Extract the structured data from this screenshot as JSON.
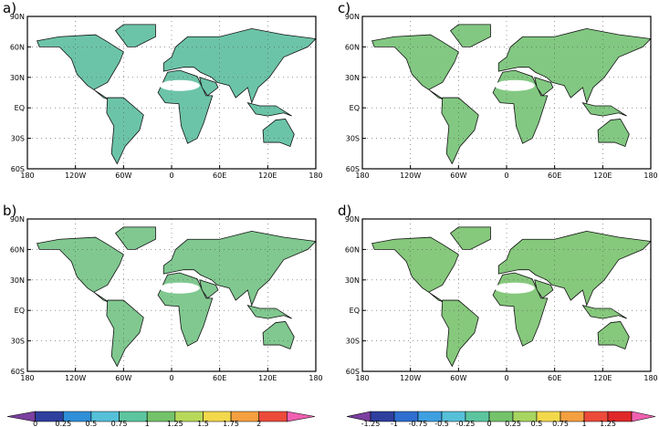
{
  "panels": [
    {
      "label": "a)"
    },
    {
      "label": "c)"
    },
    {
      "label": "b)"
    },
    {
      "label": "d)"
    }
  ],
  "lat_labels": [
    "90N",
    "60N",
    "30N",
    "EQ",
    "30S",
    "60S"
  ],
  "lon_labels": [
    "180",
    "120W",
    "60W",
    "0",
    "60E",
    "120E",
    "180"
  ],
  "colorbars": [
    {
      "labels": [
        "0",
        "0.25",
        "0.5",
        "0.75",
        "1",
        "1.25",
        "1.5",
        "1.75",
        "2"
      ],
      "colors": [
        "#7b3fa0",
        "#2e3f9e",
        "#2f8fd8",
        "#55c0d8",
        "#5cc5a0",
        "#74c36a",
        "#b8d85a",
        "#f2d84a",
        "#f4a040",
        "#ec4a3a",
        "#f060b0"
      ]
    },
    {
      "labels": [
        "-1.25",
        "-1",
        "-0.75",
        "-0.5",
        "-0.25",
        "0",
        "0.25",
        "0.5",
        "0.75",
        "1",
        "1.25"
      ],
      "colors": [
        "#7b3fa0",
        "#2e3f9e",
        "#2f6fd0",
        "#3fa0e0",
        "#55c0d8",
        "#5cc5a0",
        "#74c36a",
        "#a8d460",
        "#f2d84a",
        "#f4a040",
        "#ec4a3a",
        "#e02828",
        "#f060b0"
      ]
    }
  ]
}
